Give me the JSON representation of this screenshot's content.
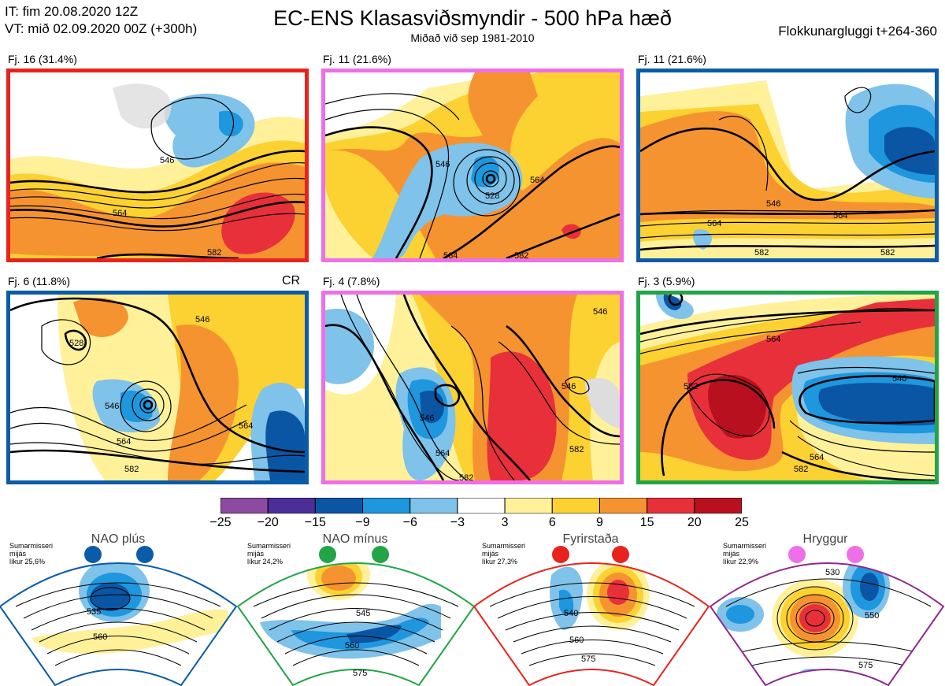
{
  "header": {
    "it_line": "IT: fim 20.08.2020 12Z",
    "vt_line": "VT: mið 02.09.2020 00Z  (+300h)",
    "title": "EC-ENS Klasasviðsmyndir - 500 hPa hæð",
    "subtitle": "Miðað við sep 1981-2010",
    "window": "Flokkunargluggi t+264-360"
  },
  "panels": [
    {
      "label": "Fj. 16 (31.4%)",
      "border": "#e8231e",
      "extra": ""
    },
    {
      "label": "Fj. 11 (21.6%)",
      "border": "#ee6fe8",
      "extra": ""
    },
    {
      "label": "Fj. 11 (21.6%)",
      "border": "#0b5ca8",
      "extra": ""
    },
    {
      "label": "Fj. 6 (11.8%)",
      "border": "#0b5ca8",
      "extra": "CR"
    },
    {
      "label": "Fj. 4 (7.8%)",
      "border": "#ee6fe8",
      "extra": ""
    },
    {
      "label": "Fj. 3 (5.9%)",
      "border": "#22a447",
      "extra": ""
    }
  ],
  "colorbar": {
    "ticks": [
      "−25",
      "−20",
      "−15",
      "−9",
      "−6",
      "−3",
      "3",
      "6",
      "9",
      "15",
      "20",
      "25"
    ],
    "colors": [
      "#8c4aa0",
      "#4b2e98",
      "#0b56a4",
      "#1e97de",
      "#7fc2ea",
      "#ffffff",
      "#fff19a",
      "#fcd132",
      "#f59331",
      "#e8303a",
      "#b8101e"
    ]
  },
  "regimes": [
    {
      "name": "NAO plús",
      "note1": "Sumarmisseri",
      "note2": "mijás",
      "note3": "líkur 25,6%",
      "color": "#0b5ca8",
      "dot": "#0b5ca8",
      "labels": [
        "535",
        "560"
      ]
    },
    {
      "name": "NAO mínus",
      "note1": "Sumarmisseri",
      "note2": "mijás",
      "note3": "líkur 24,2%",
      "color": "#22a447",
      "dot": "#22a447",
      "labels": [
        "545",
        "560",
        "575"
      ]
    },
    {
      "name": "Fyrirstaða",
      "note1": "Sumarmisseri",
      "note2": "mijás",
      "note3": "líkur 27,3%",
      "color": "#e8231e",
      "dot": "#e8231e",
      "labels": [
        "540",
        "560",
        "575"
      ]
    },
    {
      "name": "Hryggur",
      "note1": "Sumarmisseri",
      "note2": "mijás",
      "note3": "líkur 22,9%",
      "color": "#8c2a8c",
      "dot": "#ee6fe8",
      "labels": [
        "530",
        "550",
        "575"
      ]
    }
  ],
  "contour_labels": {
    "p0": [
      "546",
      "564",
      "582"
    ],
    "p1": [
      "546",
      "564",
      "528",
      "564",
      "582"
    ],
    "p2": [
      "546",
      "564",
      "564",
      "582",
      "582"
    ],
    "p3": [
      "546",
      "528",
      "546",
      "564",
      "582",
      "564"
    ],
    "p4": [
      "546",
      "546",
      "546",
      "564",
      "582",
      "582"
    ],
    "p5": [
      "564",
      "582",
      "546",
      "564",
      "582"
    ]
  }
}
